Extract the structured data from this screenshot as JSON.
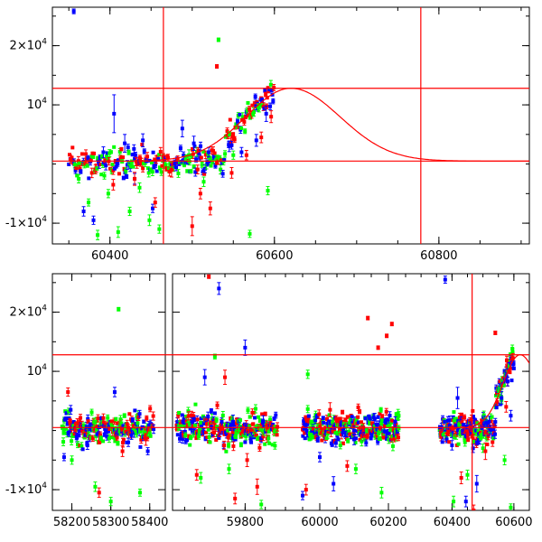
{
  "chart_data": [
    {
      "type": "scatter",
      "title": "",
      "xlabel": "",
      "ylabel": "",
      "xlim": [
        60330,
        60910
      ],
      "ylim": [
        -13500,
        26500
      ],
      "grid": false,
      "x_ticks": [
        60400,
        60600,
        60800
      ],
      "x_tick_labels": [
        "60400",
        "60600",
        "60800"
      ],
      "y_ticks": [
        -10000,
        10000,
        20000
      ],
      "y_tick_labels": [
        {
          "mantissa": "-1×10",
          "exp": "4"
        },
        {
          "mantissa": "10",
          "exp": "4"
        },
        {
          "mantissa": "2×10",
          "exp": "4"
        }
      ],
      "reference_lines": {
        "vertical": [
          60465,
          60778
        ],
        "horizontal": [
          12800,
          500
        ]
      },
      "model_curve": {
        "peak_x": 60620,
        "peak_y": 12800,
        "baseline": 500,
        "rise_width": 55,
        "decay_width": 60
      },
      "colors": {
        "blue": "#0000ff",
        "green": "#00ff00",
        "red": "#ff0000"
      },
      "series": [
        {
          "color": "blue",
          "x": [
            60356,
            60368,
            60380,
            60392,
            60405,
            60418,
            60430,
            60440,
            60452,
            60488,
            60502,
            60520,
            60545,
            60560,
            60578,
            60590
          ],
          "y": [
            25800,
            -8000,
            -9500,
            2000,
            8500,
            3500,
            -2500,
            4000,
            -7500,
            6000,
            3500,
            2000,
            3000,
            2000,
            4000,
            8500
          ],
          "err": [
            400,
            800,
            700,
            900,
            3200,
            1500,
            900,
            1100,
            700,
            1400,
            1200,
            800,
            900,
            800,
            1000,
            1300
          ]
        },
        {
          "color": "green",
          "x": [
            60362,
            60374,
            60385,
            60398,
            60410,
            60424,
            60436,
            60448,
            60460,
            60496,
            60514,
            60532,
            60550,
            60570,
            60592
          ],
          "y": [
            -2500,
            -6500,
            -12000,
            -5000,
            -11500,
            -8000,
            -4000,
            -9500,
            -11000,
            1500,
            -3000,
            21000,
            1500,
            -11800,
            -4500
          ],
          "err": [
            700,
            600,
            800,
            700,
            900,
            700,
            800,
            900,
            700,
            900,
            800,
            300,
            700,
            600,
            700
          ]
        },
        {
          "color": "red",
          "x": [
            60352,
            60378,
            60404,
            60430,
            60455,
            60475,
            60500,
            60510,
            60522,
            60530,
            60548,
            60566,
            60584,
            60596
          ],
          "y": [
            800,
            -1500,
            -3500,
            -2500,
            -6500,
            -1000,
            -10500,
            -5000,
            -7500,
            16500,
            -1500,
            1500,
            4500,
            8000
          ],
          "err": [
            700,
            800,
            900,
            1100,
            800,
            1200,
            1600,
            900,
            1100,
            300,
            900,
            800,
            900,
            1000
          ]
        }
      ],
      "dense_band": {
        "x_range": [
          60350,
          60600
        ],
        "y_scatter": 1200
      }
    },
    {
      "type": "scatter",
      "title": "",
      "xlabel": "",
      "ylabel": "",
      "ylim": [
        -13500,
        26500
      ],
      "grid": false,
      "segments": [
        {
          "xlim": [
            58150,
            58440
          ],
          "x_ticks": [
            58200,
            58300,
            58400
          ],
          "x_tick_labels": [
            "58200",
            "58300",
            "58400"
          ]
        },
        {
          "xlim": [
            59620,
            59900
          ],
          "x_ticks": [
            59800
          ],
          "x_tick_labels": [
            "59800"
          ]
        },
        {
          "xlim": [
            59900,
            60250
          ],
          "x_ticks": [
            60000,
            60200
          ],
          "x_tick_labels": [
            "60000",
            "60200"
          ]
        },
        {
          "xlim": [
            60250,
            60650
          ],
          "x_ticks": [
            60400,
            60600
          ],
          "x_tick_labels": [
            "60400",
            "60600"
          ]
        }
      ],
      "y_ticks": [
        -10000,
        10000,
        20000
      ],
      "y_tick_labels": [
        {
          "mantissa": "-1×10",
          "exp": "4"
        },
        {
          "mantissa": "10",
          "exp": "4"
        },
        {
          "mantissa": "2×10",
          "exp": "4"
        }
      ],
      "reference_lines": {
        "vertical": [
          60465
        ],
        "horizontal": [
          12800,
          500
        ]
      },
      "model_curve": {
        "peak_x": 60620,
        "peak_y": 12800,
        "baseline": 500,
        "rise_width": 55,
        "decay_width": 60
      },
      "series": [
        {
          "color": "blue",
          "x": [
            58180,
            58240,
            58310,
            58345,
            58395,
            59700,
            59735,
            59770,
            59800,
            59845,
            59950,
            60000,
            60040,
            60100,
            60160,
            60220,
            60378,
            60400,
            60418,
            60445,
            60480,
            60520,
            60560,
            60590
          ],
          "y": [
            -4500,
            -2500,
            6500,
            -2000,
            -3500,
            9000,
            24000,
            1500,
            14000,
            1500,
            -11000,
            -4500,
            -9000,
            -1500,
            2000,
            1500,
            25500,
            -2500,
            5500,
            -12000,
            -9000,
            1500,
            5500,
            2500
          ],
          "err": [
            600,
            700,
            800,
            700,
            600,
            1300,
            1000,
            1100,
            1300,
            1000,
            700,
            800,
            1200,
            900,
            900,
            800,
            600,
            800,
            1800,
            900,
            1400,
            900,
            1100,
            900
          ]
        },
        {
          "color": "green",
          "x": [
            58200,
            58260,
            58300,
            58320,
            58375,
            59690,
            59725,
            59760,
            59840,
            59965,
            60060,
            60105,
            60180,
            60230,
            60405,
            60450,
            60500,
            60570,
            60590
          ],
          "y": [
            -5000,
            -9500,
            -12000,
            20500,
            -10500,
            -8000,
            12500,
            -6500,
            -12500,
            9500,
            -2500,
            -6500,
            -10500,
            2500,
            -12000,
            -7500,
            -3000,
            -5000,
            -13000
          ],
          "err": [
            700,
            800,
            700,
            300,
            600,
            900,
            400,
            800,
            700,
            700,
            600,
            800,
            900,
            700,
            900,
            800,
            700,
            800,
            600
          ]
        },
        {
          "color": "red",
          "x": [
            58190,
            58270,
            58330,
            58390,
            59680,
            59710,
            59750,
            59775,
            59805,
            59830,
            59960,
            60030,
            60080,
            60140,
            60170,
            60195,
            60210,
            60430,
            60470,
            60508,
            60540,
            60575
          ],
          "y": [
            6500,
            -10500,
            -3500,
            -1500,
            -7500,
            26000,
            9000,
            -11500,
            -5000,
            -9500,
            -10000,
            3500,
            -6000,
            19000,
            14000,
            16000,
            18000,
            -8000,
            -13500,
            -3500,
            16500,
            4000
          ],
          "err": [
            700,
            800,
            900,
            1000,
            900,
            300,
            1200,
            900,
            1100,
            1300,
            900,
            1200,
            900,
            300,
            300,
            300,
            300,
            1000,
            900,
            1400,
            300,
            900
          ]
        }
      ],
      "dense_bands": [
        {
          "x_range": [
            58175,
            58410
          ],
          "y_scatter": 1300
        },
        {
          "x_range": [
            59630,
            59880
          ],
          "y_scatter": 1500
        },
        {
          "x_range": [
            59950,
            60230
          ],
          "y_scatter": 1300
        },
        {
          "x_range": [
            60360,
            60600
          ],
          "y_scatter": 1200
        }
      ]
    }
  ]
}
